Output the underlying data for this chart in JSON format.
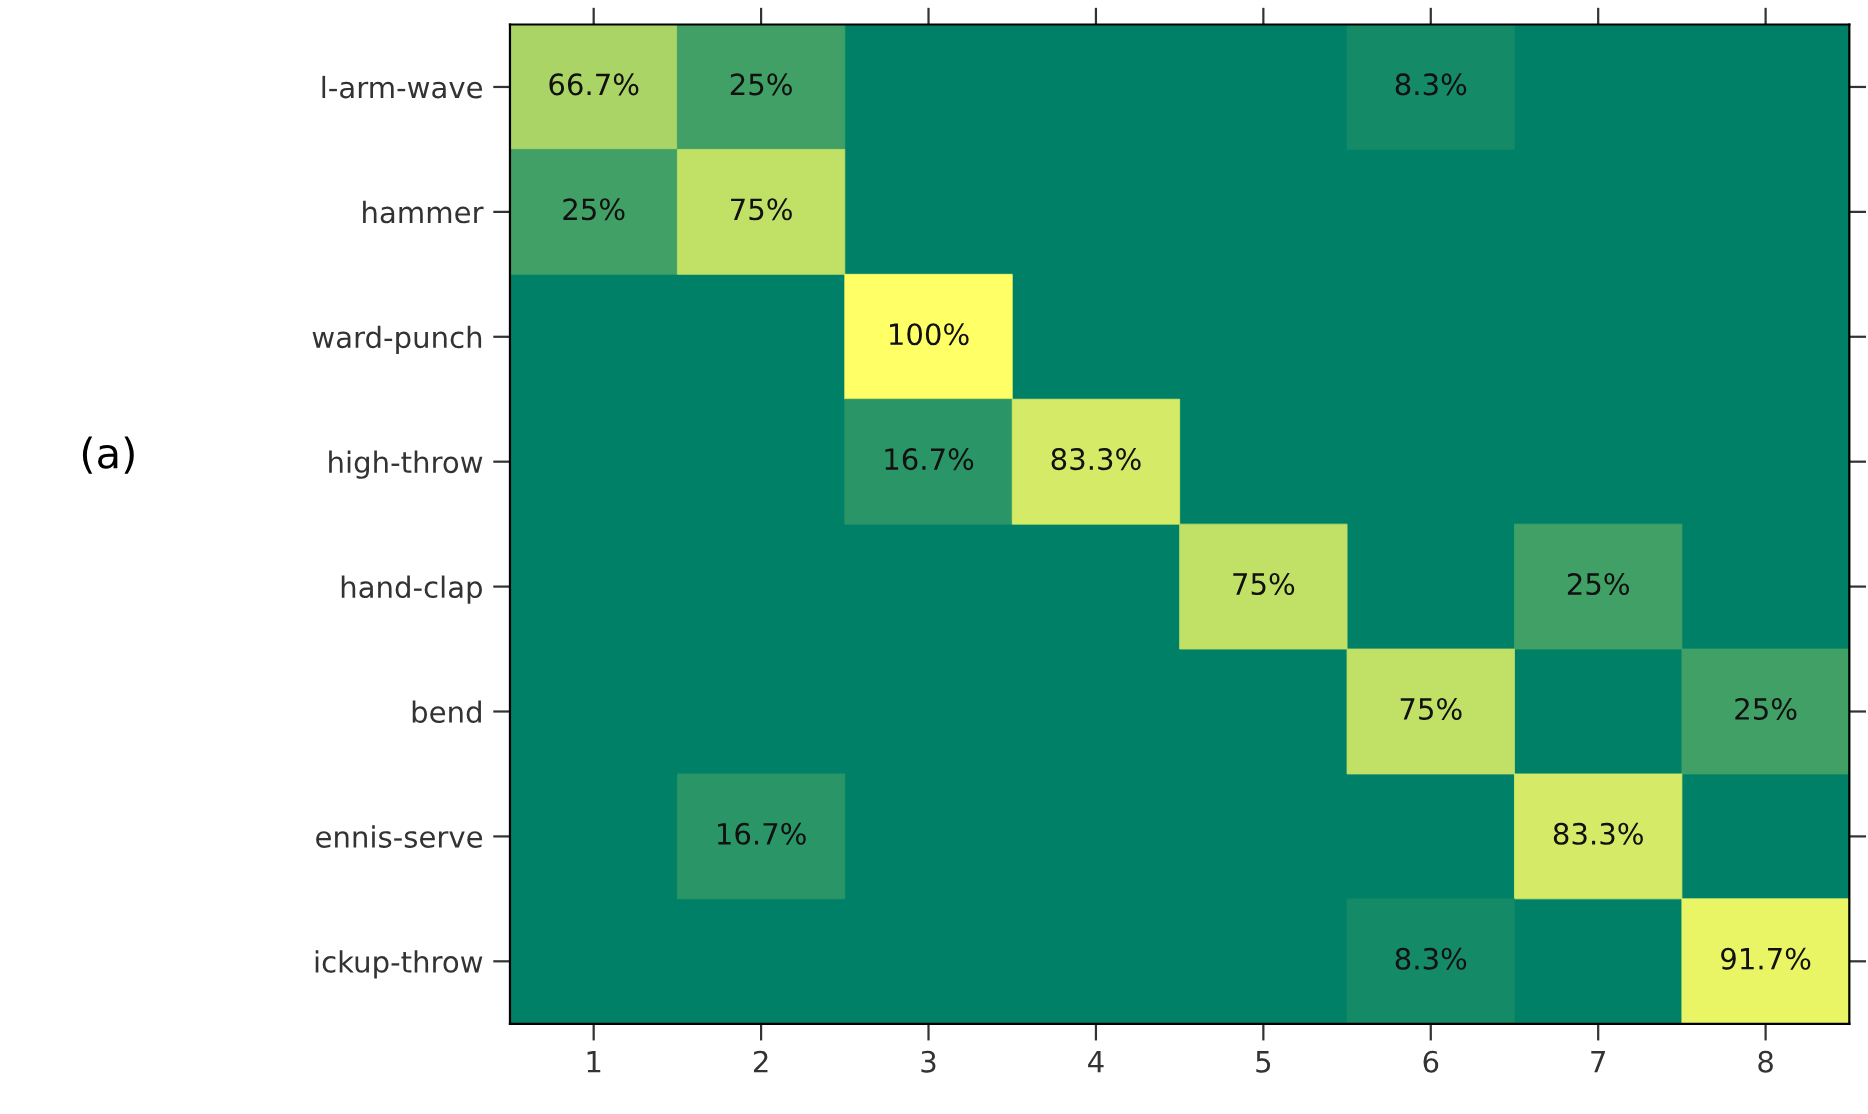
{
  "chart_data": {
    "type": "heatmap",
    "categories": [
      "1",
      "2",
      "3",
      "4",
      "5",
      "6",
      "7",
      "8"
    ],
    "y_categories": [
      "l-arm-wave",
      "hammer",
      "ward-punch",
      "high-throw",
      "hand-clap",
      "bend",
      "ennis-serve",
      "ickup-throw"
    ],
    "cells": [
      [
        66.7,
        25,
        null,
        null,
        null,
        8.3,
        null,
        null
      ],
      [
        25,
        75,
        null,
        null,
        null,
        null,
        null,
        null
      ],
      [
        null,
        null,
        100,
        null,
        null,
        null,
        null,
        null
      ],
      [
        null,
        null,
        16.7,
        83.3,
        null,
        null,
        null,
        null
      ],
      [
        null,
        null,
        null,
        null,
        75,
        null,
        25,
        null
      ],
      [
        null,
        null,
        null,
        null,
        null,
        75,
        null,
        25
      ],
      [
        null,
        16.7,
        null,
        null,
        null,
        null,
        83.3,
        null
      ],
      [
        null,
        null,
        null,
        null,
        null,
        8.3,
        null,
        91.7
      ]
    ],
    "cell_labels": [
      [
        "66.7%",
        "25%",
        null,
        null,
        null,
        "8.3%",
        null,
        null
      ],
      [
        "25%",
        "75%",
        null,
        null,
        null,
        null,
        null,
        null
      ],
      [
        null,
        null,
        "100%",
        null,
        null,
        null,
        null,
        null
      ],
      [
        null,
        null,
        "16.7%",
        "83.3%",
        null,
        null,
        null,
        null
      ],
      [
        null,
        null,
        null,
        null,
        "75%",
        null,
        "25%",
        null
      ],
      [
        null,
        null,
        null,
        null,
        null,
        "75%",
        null,
        "25%"
      ],
      [
        null,
        "16.7%",
        null,
        null,
        null,
        null,
        "83.3%",
        null
      ],
      [
        null,
        null,
        null,
        null,
        null,
        "8.3%",
        null,
        "91.7%"
      ]
    ],
    "colors": [
      "#008066",
      "#ffff66"
    ],
    "annotations": [
      "(a)"
    ]
  }
}
